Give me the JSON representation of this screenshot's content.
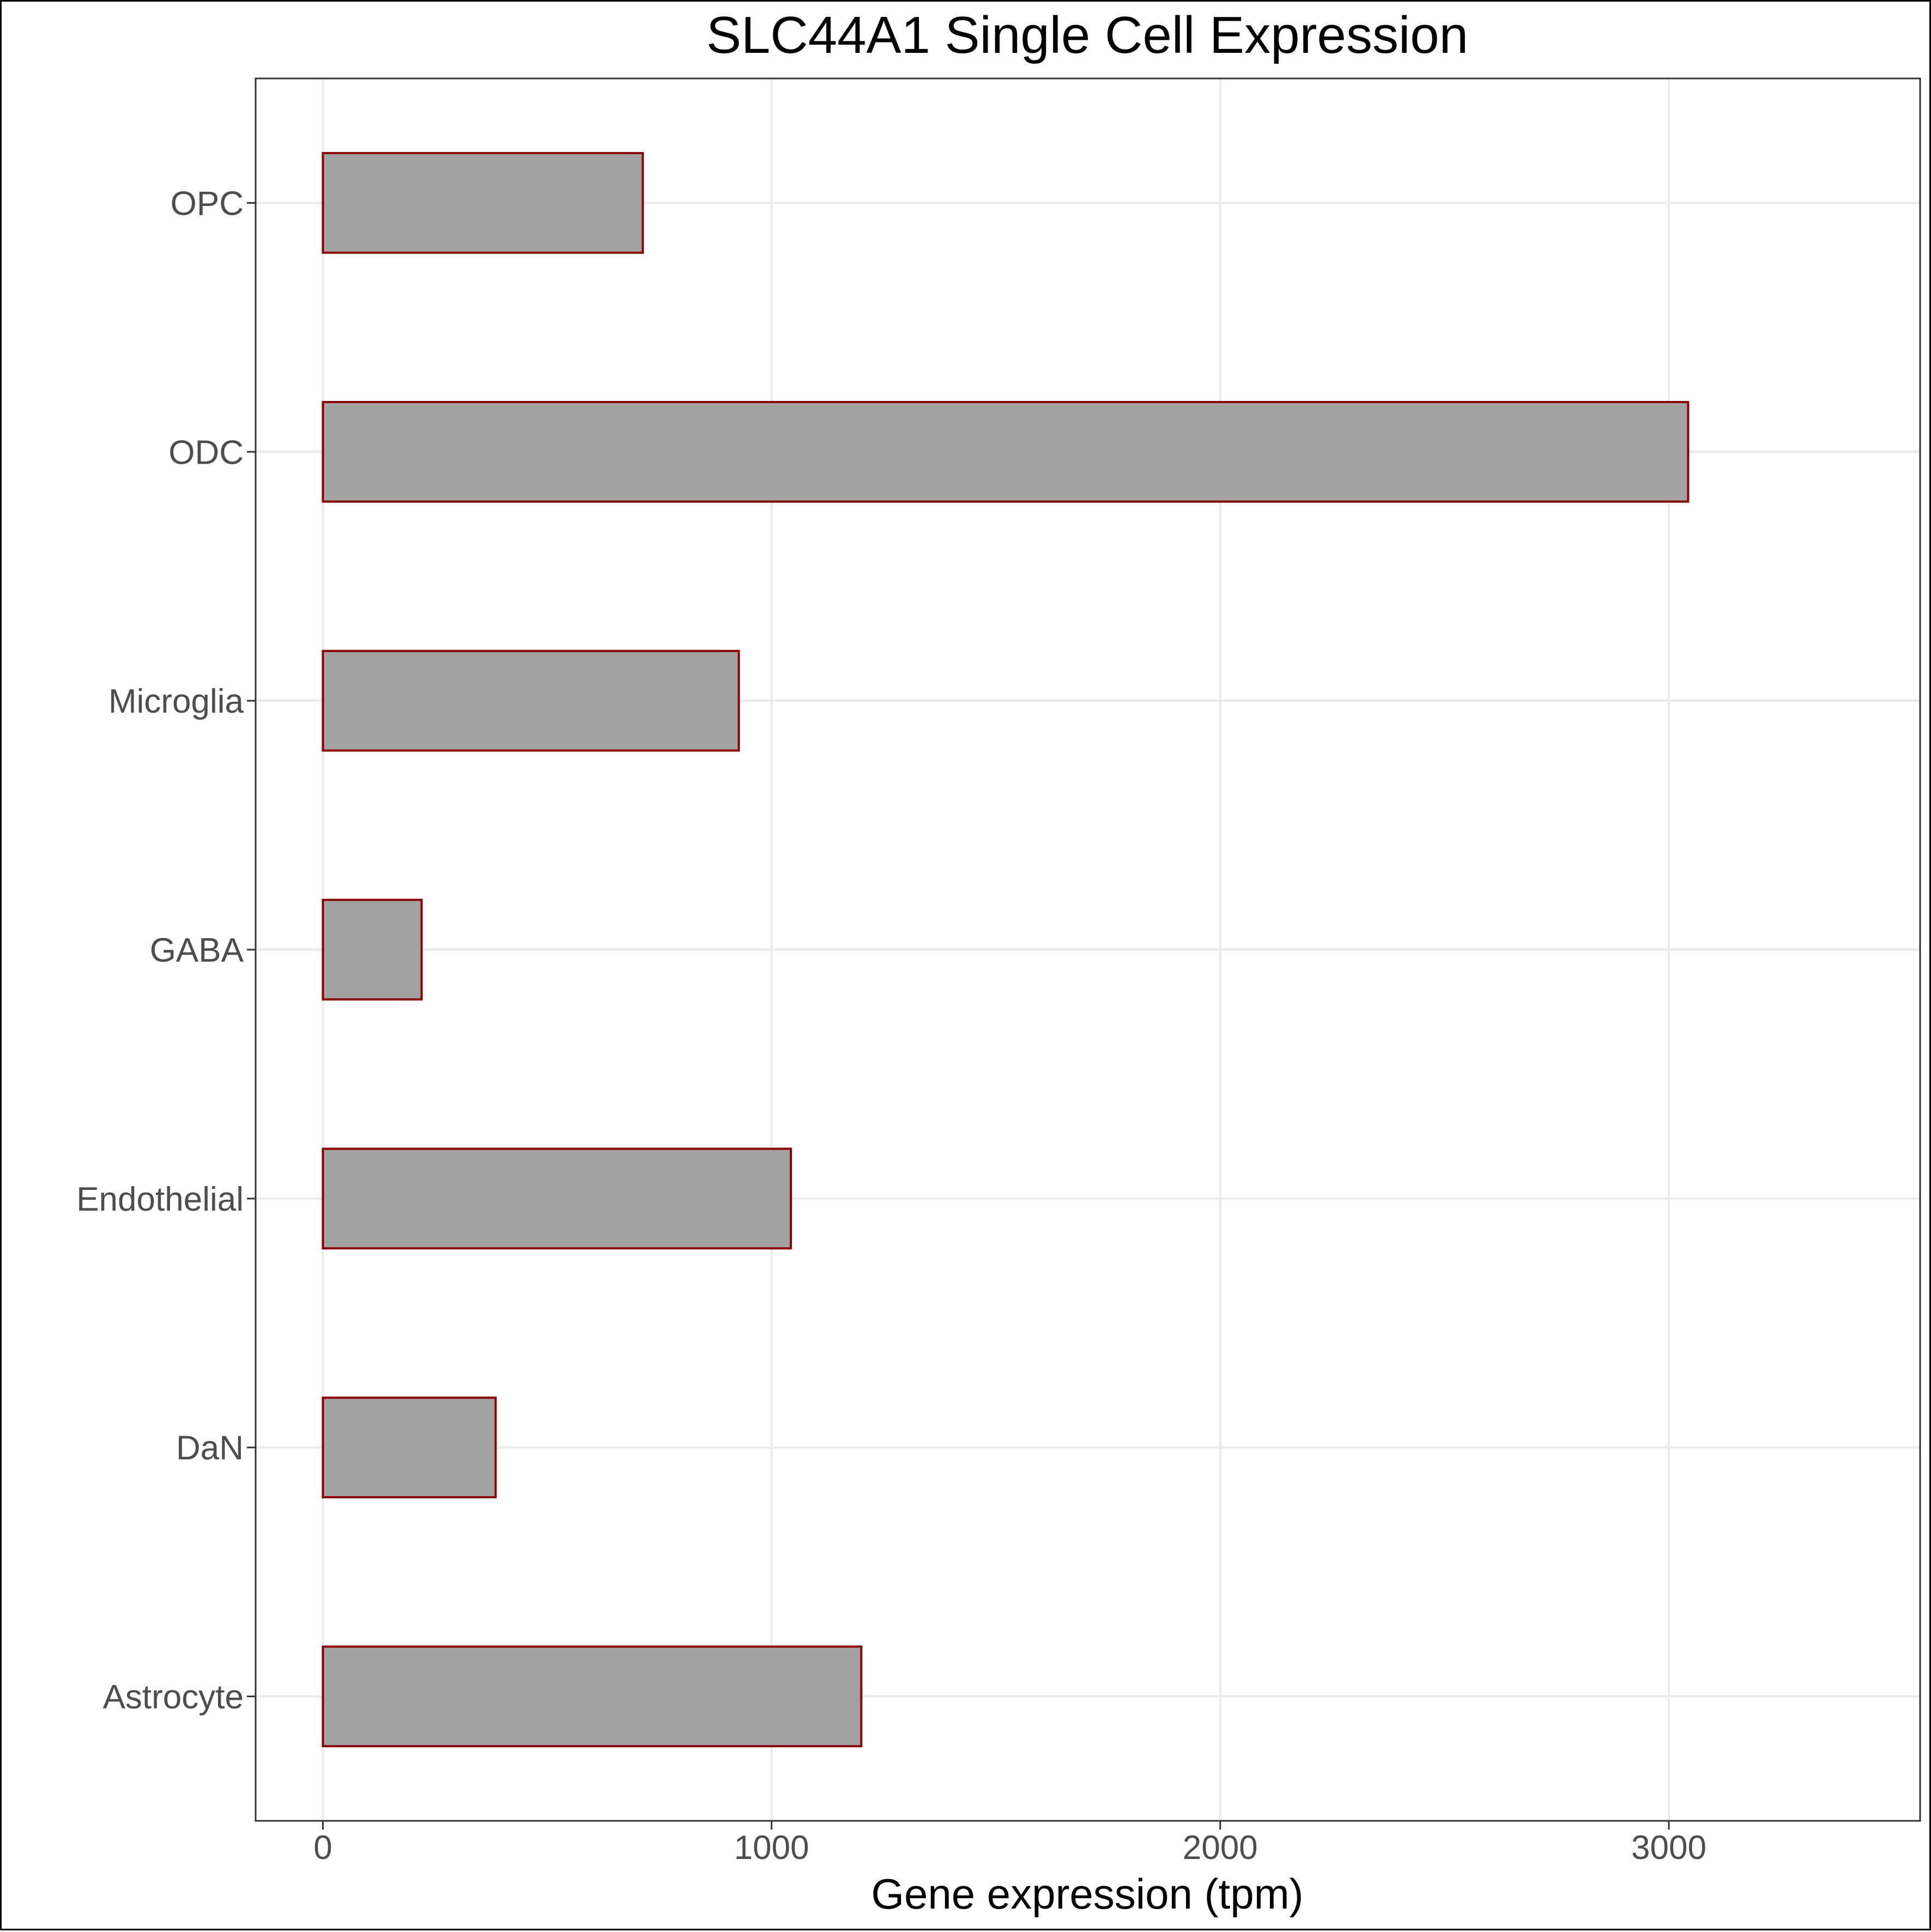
{
  "chart_data": {
    "type": "bar",
    "orientation": "horizontal",
    "title": "SLC44A1 Single Cell Expression",
    "xlabel": "Gene expression (tpm)",
    "ylabel": "",
    "categories": [
      "Astrocyte",
      "DaN",
      "Endothelial",
      "GABA",
      "Microglia",
      "ODC",
      "OPC"
    ],
    "values": [
      1200,
      385,
      1043,
      220,
      927,
      3043,
      713
    ],
    "xlim": [
      -150,
      3560
    ],
    "x_ticks": [
      0,
      1000,
      2000,
      3000
    ],
    "x_tick_labels": [
      "0",
      "1000",
      "2000",
      "3000"
    ],
    "grid": true,
    "legend": "none",
    "colors": {
      "bar_fill": "#a3a3a3",
      "bar_outline": "#8b0000",
      "grid": "#ebebeb",
      "panel_border": "#333333",
      "tick_text": "#4d4d4d"
    }
  }
}
